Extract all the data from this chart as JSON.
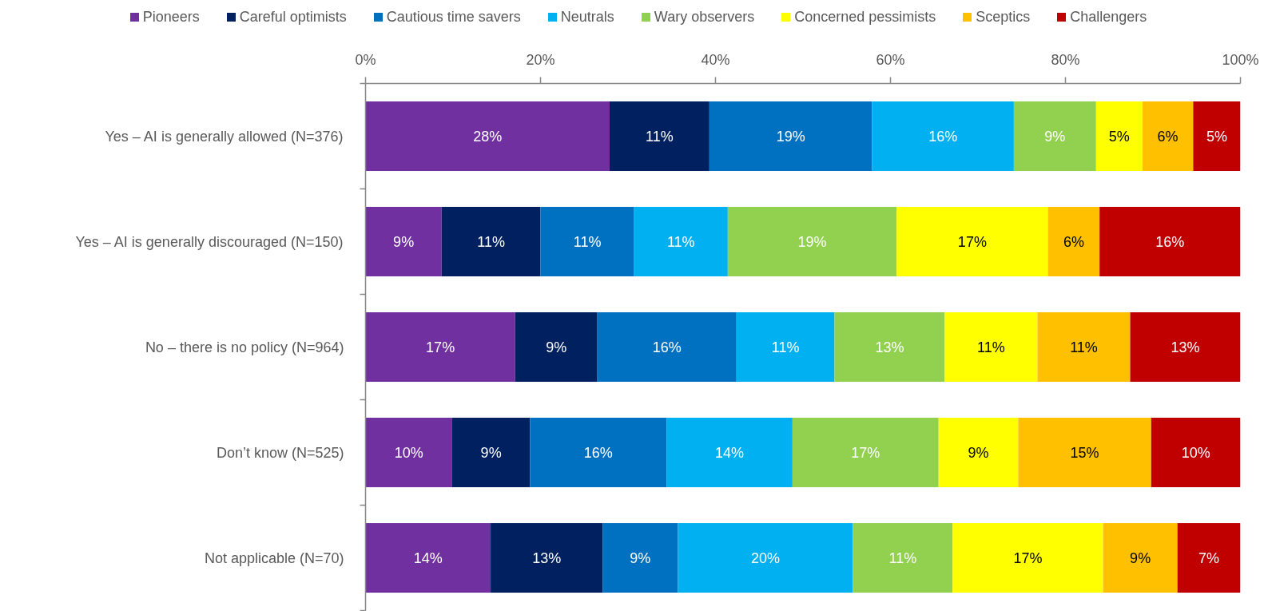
{
  "chart_data": {
    "type": "bar",
    "orientation": "horizontal",
    "stacked": true,
    "categories": [
      "Yes – AI is generally allowed (N=376)",
      "Yes – AI is generally discouraged (N=150)",
      "No – there is no policy (N=964)",
      "Don’t know (N=525)",
      "Not applicable (N=70)"
    ],
    "xlim": [
      0,
      100
    ],
    "xticks": [
      {
        "value": 0,
        "label": "0%"
      },
      {
        "value": 20,
        "label": "20%"
      },
      {
        "value": 40,
        "label": "40%"
      },
      {
        "value": 60,
        "label": "60%"
      },
      {
        "value": 80,
        "label": "80%"
      },
      {
        "value": 100,
        "label": "100%"
      }
    ],
    "legend": "top",
    "series": [
      {
        "name": "Pioneers",
        "color": "#7030a0",
        "values": [
          27.9,
          8.7,
          17.1,
          9.9,
          14.3
        ],
        "value_labels": [
          "28%",
          "9%",
          "17%",
          "10%",
          "14%"
        ]
      },
      {
        "name": "Careful optimists",
        "color": "#002060",
        "values": [
          11.4,
          11.3,
          9.4,
          8.9,
          12.8
        ],
        "value_labels": [
          "11%",
          "11%",
          "9%",
          "9%",
          "13%"
        ]
      },
      {
        "name": "Cautious time savers",
        "color": "#0070c0",
        "values": [
          18.6,
          10.7,
          15.9,
          15.6,
          8.6
        ],
        "value_labels": [
          "19%",
          "11%",
          "16%",
          "16%",
          "9%"
        ]
      },
      {
        "name": "Neutrals",
        "color": "#00b0f0",
        "values": [
          16.2,
          10.7,
          11.2,
          14.4,
          20.0
        ],
        "value_labels": [
          "16%",
          "11%",
          "11%",
          "14%",
          "20%"
        ]
      },
      {
        "name": "Wary observers",
        "color": "#92d050",
        "values": [
          9.4,
          19.3,
          12.6,
          16.7,
          11.4
        ],
        "value_labels": [
          "9%",
          "19%",
          "13%",
          "17%",
          "11%"
        ]
      },
      {
        "name": "Concerned pessimists",
        "color": "#ffff00",
        "values": [
          5.3,
          17.3,
          10.6,
          9.1,
          17.2
        ],
        "value_labels": [
          "5%",
          "17%",
          "11%",
          "9%",
          "17%"
        ]
      },
      {
        "name": "Sceptics",
        "color": "#ffc000",
        "values": [
          5.8,
          5.9,
          10.6,
          15.2,
          8.5
        ],
        "value_labels": [
          "6%",
          "6%",
          "11%",
          "15%",
          "9%"
        ]
      },
      {
        "name": "Challengers",
        "color": "#c00000",
        "values": [
          5.4,
          16.1,
          12.6,
          10.2,
          7.2
        ],
        "value_labels": [
          "5%",
          "16%",
          "13%",
          "10%",
          "7%"
        ]
      }
    ]
  }
}
